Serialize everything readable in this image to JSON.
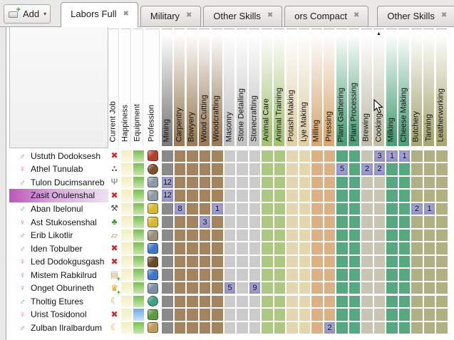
{
  "tab_bar": {
    "add_button": {
      "label": "Add"
    },
    "dropdown_glyph": "▾",
    "close_glyph": "✖",
    "tabs": [
      {
        "label": "Labors Full",
        "active": true,
        "gapped": false
      },
      {
        "label": "Military",
        "active": false,
        "gapped": false
      },
      {
        "label": "Other Skills",
        "active": false,
        "gapped": false
      },
      {
        "label": "ors Compact",
        "active": false,
        "gapped": false
      },
      {
        "label": "Other Skills",
        "active": false,
        "gapped": true
      }
    ]
  },
  "grid": {
    "info_columns": [
      {
        "label": "Current Job",
        "wide": false
      },
      {
        "label": "Happiness",
        "wide": false
      },
      {
        "label": "Equipment",
        "wide": false
      },
      {
        "label": "Profession",
        "wide": true
      }
    ],
    "skill_columns": [
      {
        "label": "Mining",
        "header_color": "#7d7d7d",
        "cell_color": "#8a8a8a"
      },
      {
        "label": "Carpentry",
        "header_color": "#9a7c59",
        "cell_color": "#a4845f"
      },
      {
        "label": "Bowyery",
        "header_color": "#9a7c59",
        "cell_color": "#a4845f"
      },
      {
        "label": "Wood Cutting",
        "header_color": "#9a7c59",
        "cell_color": "#a4845f"
      },
      {
        "label": "Woodcrafting",
        "header_color": "#9a7c59",
        "cell_color": "#a4845f"
      },
      {
        "label": "Masonry",
        "header_color": "#c2c2c2",
        "cell_color": "#cbcbcb"
      },
      {
        "label": "Stone Detailing",
        "header_color": "#c2c2c2",
        "cell_color": "#cbcbcb"
      },
      {
        "label": "Stonecrafting",
        "header_color": "#c2c2c2",
        "cell_color": "#cbcbcb"
      },
      {
        "label": "Animal Care",
        "header_color": "#a5c377",
        "cell_color": "#adc981"
      },
      {
        "label": "Animal Training",
        "header_color": "#a5c377",
        "cell_color": "#adc981"
      },
      {
        "label": "Potash Making",
        "header_color": "#e0cfa9",
        "cell_color": "#e5d6b2"
      },
      {
        "label": "Lye Making",
        "header_color": "#e0cfa9",
        "cell_color": "#e5d6b2"
      },
      {
        "label": "Milling",
        "header_color": "#d8a977",
        "cell_color": "#ddb183"
      },
      {
        "label": "Pressing",
        "header_color": "#d8a977",
        "cell_color": "#ddb183"
      },
      {
        "label": "Plant Gathering",
        "header_color": "#4ba077",
        "cell_color": "#55a87f"
      },
      {
        "label": "Plant Processing",
        "header_color": "#4ba077",
        "cell_color": "#55a87f"
      },
      {
        "label": "Brewing",
        "header_color": "#c1bfa9",
        "cell_color": "#c8c6b3"
      },
      {
        "label": "Cooking",
        "header_color": "#c1bfa9",
        "cell_color": "#c8c6b3"
      },
      {
        "label": "Milking",
        "header_color": "#4ba077",
        "cell_color": "#55a87f"
      },
      {
        "label": "Cheese Making",
        "header_color": "#4ba077",
        "cell_color": "#55a87f"
      },
      {
        "label": "Butchery",
        "header_color": "#a8a876",
        "cell_color": "#b0b080"
      },
      {
        "label": "Tanning",
        "header_color": "#a8a876",
        "cell_color": "#b0b080"
      },
      {
        "label": "Leatherworking",
        "header_color": "#a8a876",
        "cell_color": "#b0b080"
      }
    ],
    "sort": {
      "column": "Cooking",
      "glyph": "▲"
    },
    "value_cell_color": "#8f8ec3",
    "rows": [
      {
        "name": "Ustuth Dodoksesh",
        "gender": "male",
        "gender_color": "#4da6e8",
        "job": {
          "icon": "no-job-icon",
          "glyph": "✖",
          "color": "#cc2b2b",
          "plus": false
        },
        "profession_color": "#b5402a",
        "profession_shape": "square",
        "equipment": "green",
        "selected": false,
        "skills": {
          "Cooking": 3,
          "Milking": 1,
          "Cheese Making": 1
        }
      },
      {
        "name": "Athel Tunulab",
        "gender": "female",
        "gender_color": "#f55fa0",
        "job": {
          "icon": "eat-food-icon",
          "glyph": "∴",
          "color": "#7a4a22",
          "plus": false
        },
        "profession_color": "#7c5226",
        "profession_shape": "circle",
        "equipment": "green",
        "selected": false,
        "skills": {
          "Plant Gathering": 5,
          "Brewing": 2,
          "Cooking": 2
        }
      },
      {
        "name": "Tulon Ducimsanreb",
        "gender": "male",
        "gender_color": "#ef6b6b",
        "job": {
          "icon": "eat-meal-icon",
          "glyph": "Ψ",
          "color": "#9a9a9a",
          "plus": false
        },
        "profession_color": "#8f9aa6",
        "profession_shape": "square",
        "equipment": "green",
        "selected": false,
        "skills": {
          "Mining": 12
        }
      },
      {
        "name": "Zasit Onulenshal",
        "gender": "female",
        "gender_color": "#f55fa0",
        "job": {
          "icon": "no-job-icon",
          "glyph": "✖",
          "color": "#cc2b2b",
          "plus": false
        },
        "profession_color": "#8f9aa6",
        "profession_shape": "square",
        "equipment": "green",
        "selected": true,
        "skills": {
          "Mining": 12
        }
      },
      {
        "name": "Aban Ibelonul",
        "gender": "male",
        "gender_color": "#4da6e8",
        "job": {
          "icon": "work-tools-icon",
          "glyph": "⚒",
          "color": "#4a4a4a",
          "plus": false
        },
        "profession_color": "#d9b92f",
        "profession_shape": "square",
        "equipment": "green",
        "selected": false,
        "skills": {
          "Carpentry": 8,
          "Woodcrafting": 1,
          "Butchery": 2,
          "Tanning": 1
        }
      },
      {
        "name": "Ast Stukosenshal",
        "gender": "female",
        "gender_color": "#f55fa0",
        "job": {
          "icon": "cut-tree-icon",
          "glyph": "♣",
          "color": "#3a9a3a",
          "plus": false
        },
        "profession_color": "#d9b92f",
        "profession_shape": "square",
        "equipment": "green",
        "selected": false,
        "skills": {
          "Wood Cutting": 3
        }
      },
      {
        "name": "Erib Likotlir",
        "gender": "male",
        "gender_color": "#4da6e8",
        "job": {
          "icon": "haul-item-icon",
          "glyph": "▱",
          "color": "#b09060",
          "plus": false
        },
        "profession_color": "#9a8f7a",
        "profession_shape": "square",
        "equipment": "green",
        "selected": false,
        "skills": {}
      },
      {
        "name": "Iden Tobulber",
        "gender": "male",
        "gender_color": "#93a0b4",
        "job": {
          "icon": "no-job-icon",
          "glyph": "✖",
          "color": "#cc2b2b",
          "plus": false
        },
        "profession_color": "#3f77c9",
        "profession_shape": "square",
        "equipment": "green",
        "selected": false,
        "skills": {}
      },
      {
        "name": "Led Dodokgusgash",
        "gender": "female",
        "gender_color": "#f55fa0",
        "job": {
          "icon": "no-job-icon",
          "glyph": "✖",
          "color": "#cc2b2b",
          "plus": false
        },
        "profession_color": "#6b4a28",
        "profession_shape": "square",
        "equipment": "green",
        "selected": false,
        "skills": {}
      },
      {
        "name": "Mistem Rabkilrud",
        "gender": "female",
        "gender_color": "#f55fa0",
        "job": {
          "icon": "construct-building-icon",
          "glyph": "▤",
          "color": "#c0a878",
          "plus": true
        },
        "profession_color": "#3f77c9",
        "profession_shape": "square",
        "equipment": "green",
        "selected": false,
        "skills": {}
      },
      {
        "name": "Onget Oburineth",
        "gender": "female",
        "gender_color": "#f55fa0",
        "job": {
          "icon": "make-crafts-icon",
          "glyph": "♛",
          "color": "#d8a020",
          "plus": true
        },
        "profession_color": "#7e8fa0",
        "profession_shape": "square",
        "equipment": "green",
        "selected": false,
        "skills": {
          "Masonry": 5,
          "Stonecrafting": 9
        }
      },
      {
        "name": "Tholtig Etures",
        "gender": "male",
        "gender_color": "#4da6e8",
        "job": {
          "icon": "sleep-icon",
          "glyph": "☾",
          "color": "#e8923a",
          "plus": false
        },
        "profession_color": "#3da182",
        "profession_shape": "circle",
        "equipment": "green",
        "selected": false,
        "skills": {}
      },
      {
        "name": "Urist Tosidonol",
        "gender": "female",
        "gender_color": "#f55fa0",
        "job": {
          "icon": "no-job-icon",
          "glyph": "✖",
          "color": "#cc2b2b",
          "plus": false
        },
        "profession_color": "#5d9a3c",
        "profession_shape": "square",
        "equipment": "blue",
        "selected": false,
        "skills": {}
      },
      {
        "name": "Zulban Ilralbardum",
        "gender": "male",
        "gender_color": "#4da6e8",
        "job": {
          "icon": "sleep-icon",
          "glyph": "☾",
          "color": "#e8923a",
          "plus": false
        },
        "profession_color": "#bf9d55",
        "profession_shape": "square",
        "equipment": "green",
        "selected": false,
        "skills": {
          "Pressing": 2
        }
      }
    ]
  }
}
